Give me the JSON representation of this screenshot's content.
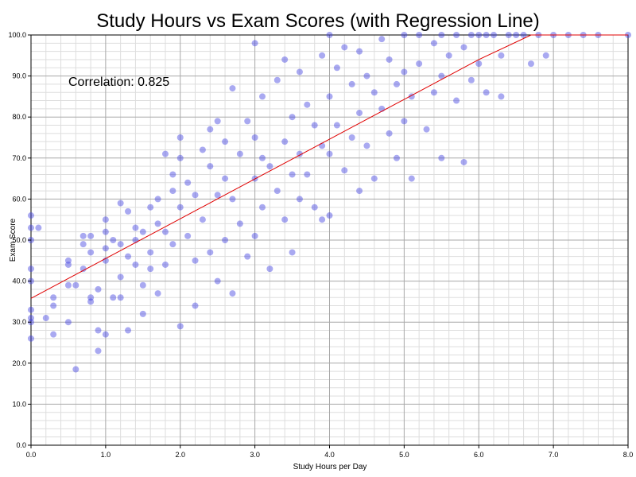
{
  "chart_data": {
    "type": "scatter",
    "title": "Study Hours vs Exam Scores (with Regression Line)",
    "xlabel": "Study Hours per Day",
    "ylabel": "Exam Score",
    "xlim": [
      0,
      8
    ],
    "ylim": [
      0,
      100
    ],
    "x_ticks": [
      "0.0",
      "1.0",
      "2.0",
      "3.0",
      "4.0",
      "5.0",
      "6.0",
      "7.0",
      "8.0"
    ],
    "y_ticks": [
      "0.0",
      "10.0",
      "20.0",
      "30.0",
      "40.0",
      "50.0",
      "60.0",
      "70.0",
      "80.0",
      "90.0",
      "100.0"
    ],
    "grid": true,
    "annotation": "Correlation: 0.825",
    "point_color": "#4040e0",
    "line_color": "#e00000",
    "regression": {
      "x": [
        0,
        1,
        2,
        3,
        4,
        5,
        6,
        6.7,
        8
      ],
      "y": [
        35.8,
        45.5,
        55.2,
        64.9,
        74.6,
        84.3,
        94.0,
        100.0,
        100.0
      ]
    },
    "sample_points_estimated": [
      [
        0.0,
        56.0
      ],
      [
        0.0,
        53.0
      ],
      [
        0.0,
        50.0
      ],
      [
        0.0,
        43.0
      ],
      [
        0.0,
        40.0
      ],
      [
        0.0,
        33.0
      ],
      [
        0.0,
        31.0
      ],
      [
        0.0,
        30.0
      ],
      [
        0.0,
        26.0
      ],
      [
        0.1,
        53.0
      ],
      [
        0.2,
        31.0
      ],
      [
        0.3,
        34.0
      ],
      [
        0.3,
        36.0
      ],
      [
        0.3,
        27.0
      ],
      [
        0.5,
        45.0
      ],
      [
        0.5,
        44.0
      ],
      [
        0.5,
        39.0
      ],
      [
        0.5,
        30.0
      ],
      [
        0.6,
        18.5
      ],
      [
        0.6,
        39.0
      ],
      [
        0.7,
        49.0
      ],
      [
        0.7,
        43.0
      ],
      [
        0.7,
        51.0
      ],
      [
        0.8,
        47.0
      ],
      [
        0.8,
        36.0
      ],
      [
        0.8,
        35.0
      ],
      [
        0.8,
        51.0
      ],
      [
        0.9,
        38.0
      ],
      [
        0.9,
        23.0
      ],
      [
        0.9,
        28.0
      ],
      [
        1.0,
        55.0
      ],
      [
        1.0,
        52.0
      ],
      [
        1.0,
        48.0
      ],
      [
        1.0,
        45.0
      ],
      [
        1.0,
        27.0
      ],
      [
        1.1,
        50.0
      ],
      [
        1.1,
        36.0
      ],
      [
        1.2,
        59.0
      ],
      [
        1.2,
        49.0
      ],
      [
        1.2,
        41.0
      ],
      [
        1.2,
        36.0
      ],
      [
        1.3,
        57.0
      ],
      [
        1.3,
        46.0
      ],
      [
        1.3,
        28.0
      ],
      [
        1.4,
        53.0
      ],
      [
        1.4,
        50.0
      ],
      [
        1.4,
        44.0
      ],
      [
        1.5,
        52.0
      ],
      [
        1.5,
        39.0
      ],
      [
        1.5,
        32.0
      ],
      [
        1.6,
        58.0
      ],
      [
        1.6,
        47.0
      ],
      [
        1.6,
        43.0
      ],
      [
        1.7,
        60.0
      ],
      [
        1.7,
        54.0
      ],
      [
        1.7,
        37.0
      ],
      [
        1.8,
        71.0
      ],
      [
        1.8,
        52.0
      ],
      [
        1.8,
        44.0
      ],
      [
        1.9,
        66.0
      ],
      [
        1.9,
        62.0
      ],
      [
        1.9,
        49.0
      ],
      [
        2.0,
        75.0
      ],
      [
        2.0,
        70.0
      ],
      [
        2.0,
        58.0
      ],
      [
        2.0,
        29.0
      ],
      [
        2.1,
        64.0
      ],
      [
        2.1,
        51.0
      ],
      [
        2.2,
        61.0
      ],
      [
        2.2,
        45.0
      ],
      [
        2.2,
        34.0
      ],
      [
        2.3,
        72.0
      ],
      [
        2.3,
        55.0
      ],
      [
        2.4,
        77.0
      ],
      [
        2.4,
        68.0
      ],
      [
        2.4,
        47.0
      ],
      [
        2.5,
        79.0
      ],
      [
        2.5,
        61.0
      ],
      [
        2.5,
        40.0
      ],
      [
        2.6,
        74.0
      ],
      [
        2.6,
        65.0
      ],
      [
        2.6,
        50.0
      ],
      [
        2.7,
        87.0
      ],
      [
        2.7,
        60.0
      ],
      [
        2.7,
        37.0
      ],
      [
        2.8,
        71.0
      ],
      [
        2.8,
        54.0
      ],
      [
        2.9,
        79.0
      ],
      [
        2.9,
        46.0
      ],
      [
        3.0,
        98.0
      ],
      [
        3.0,
        75.0
      ],
      [
        3.0,
        65.0
      ],
      [
        3.0,
        51.0
      ],
      [
        3.1,
        85.0
      ],
      [
        3.1,
        70.0
      ],
      [
        3.1,
        58.0
      ],
      [
        3.2,
        68.0
      ],
      [
        3.2,
        43.0
      ],
      [
        3.3,
        89.0
      ],
      [
        3.3,
        62.0
      ],
      [
        3.4,
        94.0
      ],
      [
        3.4,
        74.0
      ],
      [
        3.4,
        55.0
      ],
      [
        3.5,
        80.0
      ],
      [
        3.5,
        66.0
      ],
      [
        3.5,
        47.0
      ],
      [
        3.6,
        91.0
      ],
      [
        3.6,
        71.0
      ],
      [
        3.6,
        60.0
      ],
      [
        3.7,
        83.0
      ],
      [
        3.7,
        66.0
      ],
      [
        3.8,
        78.0
      ],
      [
        3.8,
        58.0
      ],
      [
        3.9,
        95.0
      ],
      [
        3.9,
        73.0
      ],
      [
        3.9,
        55.0
      ],
      [
        4.0,
        100.0
      ],
      [
        4.0,
        85.0
      ],
      [
        4.0,
        71.0
      ],
      [
        4.0,
        56.0
      ],
      [
        4.1,
        92.0
      ],
      [
        4.1,
        78.0
      ],
      [
        4.2,
        97.0
      ],
      [
        4.2,
        67.0
      ],
      [
        4.3,
        88.0
      ],
      [
        4.3,
        75.0
      ],
      [
        4.4,
        96.0
      ],
      [
        4.4,
        81.0
      ],
      [
        4.4,
        62.0
      ],
      [
        4.5,
        90.0
      ],
      [
        4.5,
        73.0
      ],
      [
        4.6,
        86.0
      ],
      [
        4.6,
        65.0
      ],
      [
        4.7,
        99.0
      ],
      [
        4.7,
        82.0
      ],
      [
        4.8,
        94.0
      ],
      [
        4.8,
        76.0
      ],
      [
        4.9,
        88.0
      ],
      [
        4.9,
        70.0
      ],
      [
        5.0,
        100.0
      ],
      [
        5.0,
        91.0
      ],
      [
        5.0,
        79.0
      ],
      [
        5.1,
        85.0
      ],
      [
        5.1,
        65.0
      ],
      [
        5.2,
        100.0
      ],
      [
        5.2,
        93.0
      ],
      [
        5.3,
        77.0
      ],
      [
        5.4,
        98.0
      ],
      [
        5.4,
        86.0
      ],
      [
        5.5,
        100.0
      ],
      [
        5.5,
        90.0
      ],
      [
        5.5,
        70.0
      ],
      [
        5.6,
        95.0
      ],
      [
        5.7,
        100.0
      ],
      [
        5.7,
        84.0
      ],
      [
        5.8,
        97.0
      ],
      [
        5.8,
        69.0
      ],
      [
        5.9,
        100.0
      ],
      [
        5.9,
        89.0
      ],
      [
        6.0,
        100.0
      ],
      [
        6.0,
        93.0
      ],
      [
        6.1,
        100.0
      ],
      [
        6.1,
        86.0
      ],
      [
        6.2,
        100.0
      ],
      [
        6.3,
        95.0
      ],
      [
        6.3,
        85.0
      ],
      [
        6.4,
        100.0
      ],
      [
        6.5,
        100.0
      ],
      [
        6.6,
        100.0
      ],
      [
        6.7,
        93.0
      ],
      [
        6.8,
        100.0
      ],
      [
        6.9,
        95.0
      ],
      [
        7.0,
        100.0
      ],
      [
        7.2,
        100.0
      ],
      [
        7.4,
        100.0
      ],
      [
        7.6,
        100.0
      ],
      [
        8.0,
        100.0
      ]
    ]
  }
}
